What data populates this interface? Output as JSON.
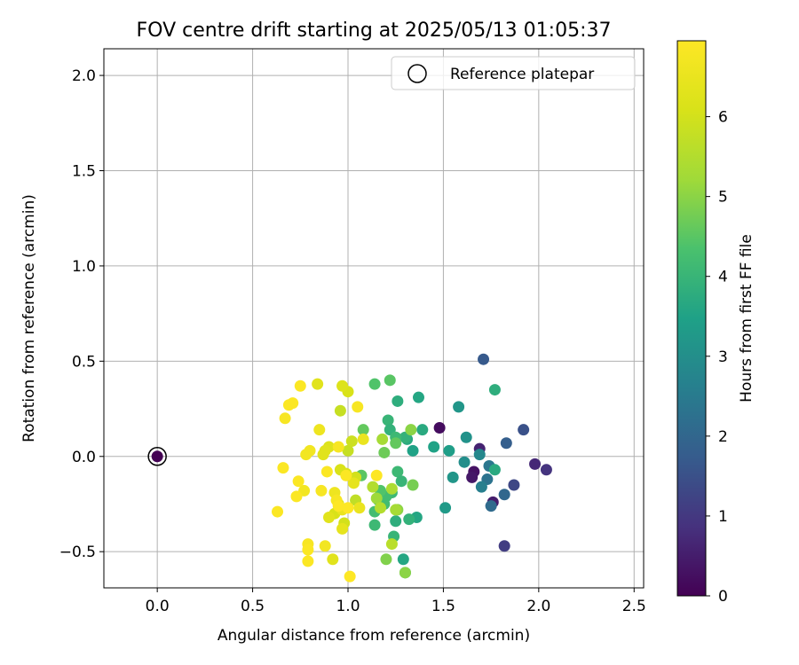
{
  "chart_data": {
    "type": "scatter",
    "title": "FOV centre drift starting at 2025/05/13 01:05:37",
    "xlabel": "Angular distance from reference (arcmin)",
    "ylabel": "Rotation from reference (arcmin)",
    "xlim": [
      -0.28,
      2.55
    ],
    "ylim": [
      -0.69,
      2.14
    ],
    "xticks": [
      0.0,
      0.5,
      1.0,
      1.5,
      2.0,
      2.5
    ],
    "xtick_labels": [
      "0.0",
      "0.5",
      "1.0",
      "1.5",
      "2.0",
      "2.5"
    ],
    "yticks": [
      -0.5,
      0.0,
      0.5,
      1.0,
      1.5,
      2.0
    ],
    "ytick_labels": [
      "−0.5",
      "0.0",
      "0.5",
      "1.0",
      "1.5",
      "2.0"
    ],
    "grid": true,
    "legend": {
      "placement": "top-right",
      "entries": [
        "Reference platepar"
      ]
    },
    "reference_point": {
      "x": 0.0,
      "y": 0.0,
      "hours": 0
    },
    "colorbar": {
      "label": "Hours from first FF file",
      "colormap": "viridis",
      "range": [
        0,
        6.95
      ],
      "ticks": [
        0,
        1,
        2,
        3,
        4,
        5,
        6
      ],
      "tick_labels": [
        "0",
        "1",
        "2",
        "3",
        "4",
        "5",
        "6"
      ]
    },
    "points": [
      {
        "x": 1.48,
        "y": 0.15,
        "h": 0.2
      },
      {
        "x": 1.66,
        "y": -0.08,
        "h": 0.3
      },
      {
        "x": 1.65,
        "y": -0.11,
        "h": 0.4
      },
      {
        "x": 1.76,
        "y": -0.24,
        "h": 0.5
      },
      {
        "x": 1.69,
        "y": 0.04,
        "h": 0.6
      },
      {
        "x": 1.98,
        "y": -0.04,
        "h": 0.7
      },
      {
        "x": 2.04,
        "y": -0.07,
        "h": 0.9
      },
      {
        "x": 1.82,
        "y": -0.47,
        "h": 1.1
      },
      {
        "x": 1.87,
        "y": -0.15,
        "h": 1.3
      },
      {
        "x": 1.92,
        "y": 0.14,
        "h": 1.5
      },
      {
        "x": 1.71,
        "y": 0.51,
        "h": 1.7
      },
      {
        "x": 1.83,
        "y": 0.07,
        "h": 1.8
      },
      {
        "x": 1.82,
        "y": -0.2,
        "h": 2.0
      },
      {
        "x": 1.75,
        "y": -0.26,
        "h": 2.1
      },
      {
        "x": 1.73,
        "y": -0.12,
        "h": 2.3
      },
      {
        "x": 1.74,
        "y": -0.05,
        "h": 2.4
      },
      {
        "x": 1.7,
        "y": -0.16,
        "h": 2.6
      },
      {
        "x": 1.69,
        "y": 0.01,
        "h": 2.8
      },
      {
        "x": 1.61,
        "y": -0.03,
        "h": 3.0
      },
      {
        "x": 1.62,
        "y": 0.1,
        "h": 3.1
      },
      {
        "x": 1.58,
        "y": 0.26,
        "h": 3.2
      },
      {
        "x": 1.55,
        "y": -0.11,
        "h": 3.2
      },
      {
        "x": 1.51,
        "y": -0.27,
        "h": 3.3
      },
      {
        "x": 1.53,
        "y": 0.03,
        "h": 3.4
      },
      {
        "x": 1.45,
        "y": 0.05,
        "h": 3.5
      },
      {
        "x": 1.77,
        "y": -0.07,
        "h": 3.7
      },
      {
        "x": 1.77,
        "y": 0.35,
        "h": 3.8
      },
      {
        "x": 1.37,
        "y": 0.31,
        "h": 3.6
      },
      {
        "x": 1.39,
        "y": 0.14,
        "h": 3.7
      },
      {
        "x": 1.36,
        "y": -0.32,
        "h": 3.6
      },
      {
        "x": 1.34,
        "y": 0.03,
        "h": 3.5
      },
      {
        "x": 1.31,
        "y": 0.09,
        "h": 3.7
      },
      {
        "x": 1.29,
        "y": -0.54,
        "h": 3.6
      },
      {
        "x": 1.3,
        "y": -0.61,
        "h": 3.8
      },
      {
        "x": 1.32,
        "y": -0.33,
        "h": 3.9
      },
      {
        "x": 1.25,
        "y": -0.34,
        "h": 3.8
      },
      {
        "x": 1.24,
        "y": -0.42,
        "h": 4.0
      },
      {
        "x": 1.21,
        "y": 0.19,
        "h": 4.0
      },
      {
        "x": 1.22,
        "y": 0.14,
        "h": 3.9
      },
      {
        "x": 1.26,
        "y": 0.29,
        "h": 3.8
      },
      {
        "x": 1.26,
        "y": -0.08,
        "h": 4.1
      },
      {
        "x": 1.28,
        "y": -0.13,
        "h": 4.0
      },
      {
        "x": 1.3,
        "y": 0.1,
        "h": 3.9
      },
      {
        "x": 1.25,
        "y": 0.1,
        "h": 4.1
      },
      {
        "x": 1.23,
        "y": -0.19,
        "h": 4.1
      },
      {
        "x": 1.2,
        "y": -0.21,
        "h": 4.2
      },
      {
        "x": 1.16,
        "y": -0.23,
        "h": 4.3
      },
      {
        "x": 1.14,
        "y": -0.29,
        "h": 4.2
      },
      {
        "x": 1.14,
        "y": -0.36,
        "h": 4.1
      },
      {
        "x": 1.19,
        "y": -0.25,
        "h": 4.2
      },
      {
        "x": 1.17,
        "y": -0.18,
        "h": 4.4
      },
      {
        "x": 1.14,
        "y": 0.38,
        "h": 4.4
      },
      {
        "x": 1.22,
        "y": 0.4,
        "h": 4.5
      },
      {
        "x": 1.07,
        "y": -0.1,
        "h": 4.5
      },
      {
        "x": 1.08,
        "y": 0.14,
        "h": 4.6
      },
      {
        "x": 1.19,
        "y": 0.02,
        "h": 4.7
      },
      {
        "x": 1.25,
        "y": 0.07,
        "h": 4.6
      },
      {
        "x": 1.34,
        "y": -0.15,
        "h": 4.8
      },
      {
        "x": 1.33,
        "y": 0.14,
        "h": 5.0
      },
      {
        "x": 1.2,
        "y": -0.54,
        "h": 4.9
      },
      {
        "x": 1.26,
        "y": -0.28,
        "h": 5.0
      },
      {
        "x": 1.3,
        "y": -0.61,
        "h": 5.0
      },
      {
        "x": 1.18,
        "y": 0.09,
        "h": 5.3
      },
      {
        "x": 1.15,
        "y": -0.22,
        "h": 5.2
      },
      {
        "x": 1.25,
        "y": -0.28,
        "h": 5.3
      },
      {
        "x": 1.23,
        "y": -0.17,
        "h": 5.4
      },
      {
        "x": 1.17,
        "y": -0.27,
        "h": 5.5
      },
      {
        "x": 1.13,
        "y": -0.16,
        "h": 5.5
      },
      {
        "x": 1.23,
        "y": -0.46,
        "h": 5.6
      },
      {
        "x": 1.04,
        "y": -0.23,
        "h": 5.7
      },
      {
        "x": 0.96,
        "y": 0.24,
        "h": 5.8
      },
      {
        "x": 1.0,
        "y": 0.03,
        "h": 5.8
      },
      {
        "x": 1.02,
        "y": 0.08,
        "h": 5.9
      },
      {
        "x": 1.04,
        "y": -0.11,
        "h": 6.0
      },
      {
        "x": 0.99,
        "y": -0.09,
        "h": 6.1
      },
      {
        "x": 0.98,
        "y": -0.35,
        "h": 6.0
      },
      {
        "x": 0.96,
        "y": -0.07,
        "h": 6.1
      },
      {
        "x": 0.95,
        "y": -0.25,
        "h": 6.2
      },
      {
        "x": 0.93,
        "y": -0.3,
        "h": 6.1
      },
      {
        "x": 0.92,
        "y": -0.54,
        "h": 6.3
      },
      {
        "x": 0.9,
        "y": 0.05,
        "h": 6.2
      },
      {
        "x": 0.88,
        "y": 0.03,
        "h": 6.3
      },
      {
        "x": 0.9,
        "y": -0.32,
        "h": 6.3
      },
      {
        "x": 0.87,
        "y": 0.01,
        "h": 6.3
      },
      {
        "x": 1.0,
        "y": 0.34,
        "h": 6.1
      },
      {
        "x": 0.97,
        "y": 0.37,
        "h": 6.2
      },
      {
        "x": 0.84,
        "y": 0.38,
        "h": 6.3
      },
      {
        "x": 0.97,
        "y": -0.38,
        "h": 6.4
      },
      {
        "x": 1.03,
        "y": -0.14,
        "h": 6.4
      },
      {
        "x": 1.06,
        "y": -0.27,
        "h": 6.5
      },
      {
        "x": 0.97,
        "y": -0.28,
        "h": 6.5
      },
      {
        "x": 1.08,
        "y": 0.09,
        "h": 6.5
      },
      {
        "x": 0.93,
        "y": -0.19,
        "h": 6.6
      },
      {
        "x": 0.88,
        "y": -0.47,
        "h": 6.7
      },
      {
        "x": 0.85,
        "y": 0.14,
        "h": 6.6
      },
      {
        "x": 0.8,
        "y": 0.03,
        "h": 6.7
      },
      {
        "x": 0.78,
        "y": 0.01,
        "h": 6.7
      },
      {
        "x": 0.77,
        "y": -0.18,
        "h": 6.7
      },
      {
        "x": 0.86,
        "y": -0.18,
        "h": 6.8
      },
      {
        "x": 0.94,
        "y": -0.23,
        "h": 6.8
      },
      {
        "x": 0.95,
        "y": 0.05,
        "h": 6.8
      },
      {
        "x": 1.05,
        "y": 0.26,
        "h": 6.8
      },
      {
        "x": 0.79,
        "y": -0.46,
        "h": 6.8
      },
      {
        "x": 0.79,
        "y": -0.49,
        "h": 6.9
      },
      {
        "x": 0.79,
        "y": -0.55,
        "h": 6.9
      },
      {
        "x": 0.74,
        "y": -0.13,
        "h": 6.9
      },
      {
        "x": 0.73,
        "y": -0.21,
        "h": 6.9
      },
      {
        "x": 0.66,
        "y": -0.06,
        "h": 6.9
      },
      {
        "x": 0.67,
        "y": 0.2,
        "h": 6.8
      },
      {
        "x": 0.69,
        "y": 0.27,
        "h": 6.9
      },
      {
        "x": 0.71,
        "y": 0.28,
        "h": 6.9
      },
      {
        "x": 0.75,
        "y": 0.37,
        "h": 6.9
      },
      {
        "x": 0.63,
        "y": -0.29,
        "h": 6.9
      },
      {
        "x": 0.89,
        "y": -0.08,
        "h": 6.9
      },
      {
        "x": 0.99,
        "y": -0.1,
        "h": 6.9
      },
      {
        "x": 1.01,
        "y": -0.63,
        "h": 6.95
      },
      {
        "x": 0.95,
        "y": -0.26,
        "h": 6.95
      },
      {
        "x": 1.15,
        "y": -0.1,
        "h": 6.95
      },
      {
        "x": 1.0,
        "y": -0.27,
        "h": 6.95
      }
    ]
  }
}
